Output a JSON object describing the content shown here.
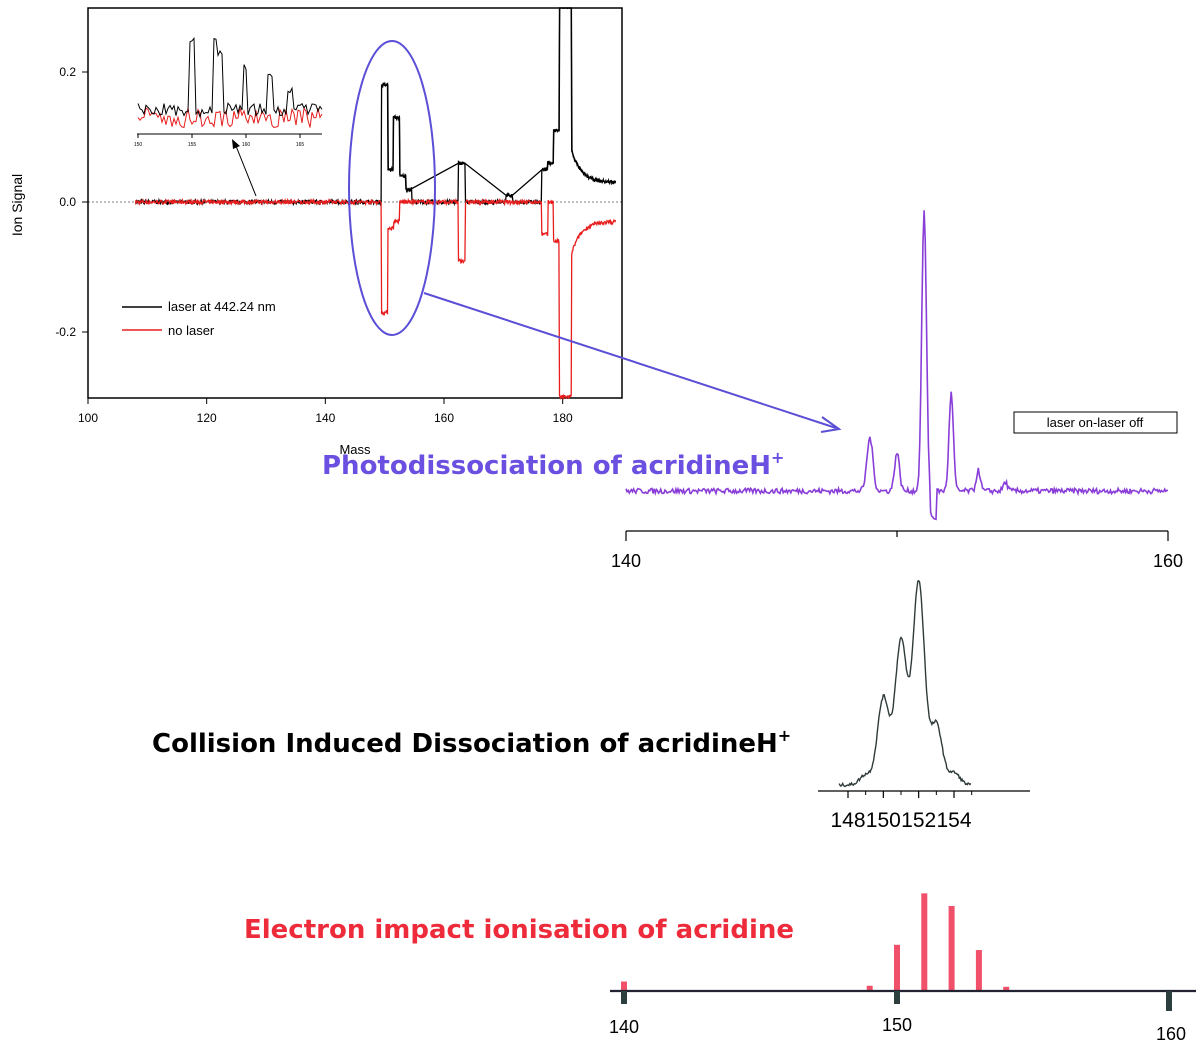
{
  "main_plot": {
    "ylabel": "Ion Signal",
    "xlabel": "Mass",
    "x_ticks": [
      "100",
      "120",
      "140",
      "160",
      "180"
    ],
    "y_ticks": [
      "0.2",
      "0.0",
      "-0.2"
    ],
    "legend": [
      "laser at 442.24 nm",
      "no laser"
    ],
    "colors": {
      "laser": "#000000",
      "no_laser": "#e81e1e",
      "highlight": "#5a4fd6"
    }
  },
  "inset": {
    "x_ticks": [
      "150",
      "155",
      "160",
      "165"
    ]
  },
  "photo": {
    "title": "Photodissociation of acridineH",
    "title_sup": "+",
    "legend": "laser on-laser off",
    "x_ticks": [
      "140",
      "160"
    ],
    "color": "#8a3ed8"
  },
  "cid": {
    "title": "Collision Induced Dissociation of acridineH",
    "title_sup": "+",
    "x_ticks": [
      "148",
      "150",
      "152",
      "154"
    ]
  },
  "ei": {
    "title": "Electron impact ionisation of acridine",
    "x_ticks": [
      "140",
      "150",
      "160"
    ],
    "color": "#ee2b3b",
    "bar_color": "#f0506a"
  },
  "chart_data": [
    {
      "type": "line",
      "title": "",
      "xlabel": "Mass",
      "ylabel": "Ion Signal",
      "xlim": [
        100,
        190
      ],
      "ylim": [
        -0.3,
        0.3
      ],
      "series": [
        {
          "name": "laser at 442.24 nm",
          "x": [
            150,
            151,
            152,
            153,
            154,
            163,
            171,
            177,
            178,
            179,
            180,
            181,
            182,
            185,
            189
          ],
          "y": [
            0.18,
            0.05,
            0.13,
            0.04,
            0.02,
            0.06,
            0.01,
            0.05,
            0.06,
            0.11,
            0.3,
            0.3,
            0.06,
            0.04,
            0.03
          ]
        },
        {
          "name": "no laser",
          "x": [
            150,
            151,
            152,
            163,
            177,
            179,
            180,
            181,
            182,
            185,
            189
          ],
          "y": [
            -0.17,
            -0.04,
            -0.03,
            -0.09,
            -0.05,
            -0.06,
            -0.3,
            -0.3,
            -0.05,
            -0.04,
            -0.03
          ]
        }
      ]
    },
    {
      "type": "line",
      "title": "Photodissociation of acridineH+",
      "xlim": [
        140,
        160
      ],
      "series": [
        {
          "name": "laser on-laser off",
          "x": [
            149,
            150,
            151,
            152,
            153,
            154
          ],
          "y": [
            0.18,
            0.13,
            0.95,
            0.33,
            0.07,
            0.03
          ]
        }
      ]
    },
    {
      "type": "line",
      "title": "Collision Induced Dissociation of acridineH+",
      "xlim": [
        147.5,
        155
      ],
      "x": [
        149,
        150,
        151,
        152,
        153,
        154
      ],
      "y": [
        0.05,
        0.43,
        0.71,
        1.0,
        0.3,
        0.06
      ]
    },
    {
      "type": "bar",
      "title": "Electron impact ionisation of acridine",
      "xlim": [
        140,
        160
      ],
      "x": [
        140,
        149,
        150,
        151,
        152,
        153,
        154
      ],
      "values": [
        0.09,
        0.05,
        0.44,
        0.93,
        0.81,
        0.39,
        0.04
      ]
    }
  ]
}
